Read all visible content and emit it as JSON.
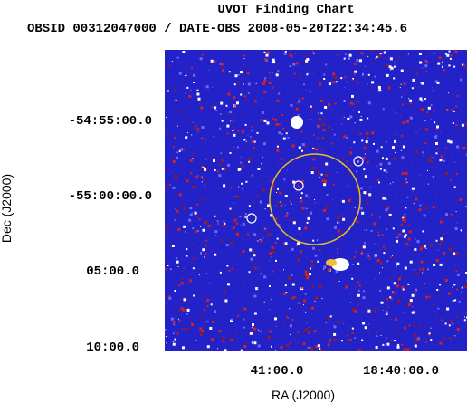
{
  "header": {
    "title": "UVOT Finding Chart",
    "subtitle": "OBSID 00312047000 / DATE-OBS 2008-05-20T22:34:45.6"
  },
  "axes": {
    "x_label": "RA (J2000)",
    "y_label": "Dec (J2000)",
    "x_ticks": [
      "41:00.0",
      "18:40:00.0"
    ],
    "y_ticks": [
      "-54:55:00.0",
      "-55:00:00.0",
      "05:00.0",
      "10:00.0"
    ]
  }
}
